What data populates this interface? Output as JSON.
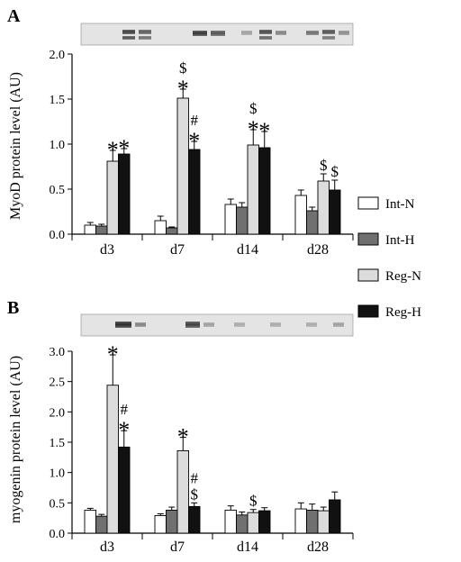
{
  "colors": {
    "Int-N": "#ffffff",
    "Int-H": "#707070",
    "Reg-N": "#dcdcdc",
    "Reg-H": "#111111",
    "axis": "#000000"
  },
  "legend": [
    "Int-N",
    "Int-H",
    "Reg-N",
    "Reg-H"
  ],
  "chart_data": [
    {
      "panel_label": "A",
      "type": "bar",
      "ylabel": "MyoD protein level (AU)",
      "ylim": [
        0,
        2.0
      ],
      "yticks": [
        0.0,
        0.5,
        1.0,
        1.5,
        2.0
      ],
      "ytick_labels": [
        "0.0",
        "0.5",
        "1.0",
        "1.5",
        "2.0"
      ],
      "categories": [
        "d3",
        "d7",
        "d14",
        "d28"
      ],
      "legend_placement": "right",
      "series": [
        {
          "name": "Int-N",
          "values": [
            0.1,
            0.15,
            0.33,
            0.43
          ],
          "errors": [
            0.03,
            0.05,
            0.06,
            0.06
          ]
        },
        {
          "name": "Int-H",
          "values": [
            0.09,
            0.07,
            0.3,
            0.26
          ],
          "errors": [
            0.02,
            0.01,
            0.05,
            0.04
          ]
        },
        {
          "name": "Reg-N",
          "values": [
            0.81,
            1.51,
            0.99,
            0.59
          ],
          "errors": [
            0.12,
            0.1,
            0.17,
            0.08
          ]
        },
        {
          "name": "Reg-H",
          "values": [
            0.89,
            0.94,
            0.96,
            0.49
          ],
          "errors": [
            0.06,
            0.09,
            0.18,
            0.11
          ]
        }
      ],
      "annotations": [
        {
          "category": "d3",
          "series": "Reg-N",
          "marks": [
            "*"
          ]
        },
        {
          "category": "d3",
          "series": "Reg-H",
          "marks": [
            "*"
          ]
        },
        {
          "category": "d7",
          "series": "Reg-N",
          "marks": [
            "*",
            "$"
          ]
        },
        {
          "category": "d7",
          "series": "Reg-H",
          "marks": [
            "*",
            "#"
          ]
        },
        {
          "category": "d14",
          "series": "Reg-N",
          "marks": [
            "*",
            "$"
          ]
        },
        {
          "category": "d14",
          "series": "Reg-H",
          "marks": [
            "*"
          ]
        },
        {
          "category": "d28",
          "series": "Reg-N",
          "marks": [
            "$"
          ]
        },
        {
          "category": "d28",
          "series": "Reg-H",
          "marks": [
            "$"
          ]
        }
      ]
    },
    {
      "panel_label": "B",
      "type": "bar",
      "ylabel": "myogenin protein level (AU)",
      "ylim": [
        0,
        3.0
      ],
      "yticks": [
        0.0,
        0.5,
        1.0,
        1.5,
        2.0,
        2.5,
        3.0
      ],
      "ytick_labels": [
        "0.0",
        "0.5",
        "1.0",
        "1.5",
        "2.0",
        "2.5",
        "3.0"
      ],
      "categories": [
        "d3",
        "d7",
        "d14",
        "d28"
      ],
      "legend_placement": "right",
      "series": [
        {
          "name": "Int-N",
          "values": [
            0.38,
            0.29,
            0.38,
            0.4
          ],
          "errors": [
            0.03,
            0.03,
            0.07,
            0.1
          ]
        },
        {
          "name": "Int-H",
          "values": [
            0.28,
            0.38,
            0.3,
            0.38
          ],
          "errors": [
            0.03,
            0.05,
            0.05,
            0.1
          ]
        },
        {
          "name": "Reg-N",
          "values": [
            2.44,
            1.36,
            0.34,
            0.37
          ],
          "errors": [
            0.5,
            0.22,
            0.05,
            0.06
          ]
        },
        {
          "name": "Reg-H",
          "values": [
            1.42,
            0.44,
            0.37,
            0.55
          ],
          "errors": [
            0.27,
            0.06,
            0.05,
            0.13
          ]
        }
      ],
      "annotations": [
        {
          "category": "d3",
          "series": "Reg-N",
          "marks": [
            "*"
          ]
        },
        {
          "category": "d3",
          "series": "Reg-H",
          "marks": [
            "*",
            "#"
          ]
        },
        {
          "category": "d7",
          "series": "Reg-N",
          "marks": [
            "*"
          ]
        },
        {
          "category": "d7",
          "series": "Reg-H",
          "marks": [
            "$",
            "#"
          ]
        },
        {
          "category": "d14",
          "series": "Reg-N",
          "marks": [
            "$"
          ]
        }
      ]
    }
  ]
}
